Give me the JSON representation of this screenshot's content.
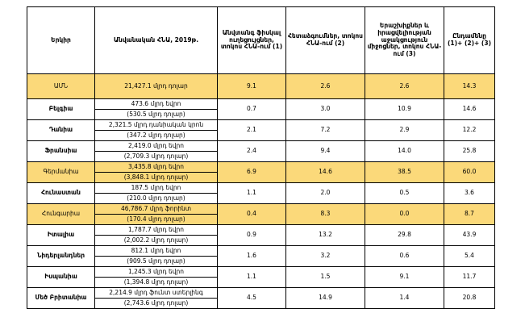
{
  "colors": {
    "highlight": "#fbd97a",
    "border": "#000000"
  },
  "headers": {
    "country": "Երկիր",
    "gdp": "Անվանական ՀՆԱ, 2019թ.",
    "col1": "Անվտանգ ֆիսկալ ուղեցույցներ, տոկոս ՀՆԱ-ում (1)",
    "col2": "Հետաձգումներ, տոկոս ՀՆԱ-ում (2)",
    "col3": "Երաշխիքներ և իրացվելիության աջակցություն միջոցներ, տոկոս ՀՆԱ-ում (3)",
    "total": "Ընդամենը (1)+ (2)+ (3)"
  },
  "rows": [
    {
      "country": "ԱՄՆ",
      "gdp": [
        "21,427.1 մլրդ դոլար"
      ],
      "c1": "9.1",
      "c2": "2.6",
      "c3": "2.6",
      "total": "14.3",
      "highlight": true
    },
    {
      "country": "Բելգիա",
      "gdp": [
        "473.6 մլրդ եվրո",
        "(530.5 մլրդ դոլար)"
      ],
      "c1": "0.7",
      "c2": "3.0",
      "c3": "10.9",
      "total": "14.6",
      "highlight": false
    },
    {
      "country": "Դանիա",
      "gdp": [
        "2,321.5 մլրդ դանիական կրոն",
        "(347.2 մլրդ դոլար)"
      ],
      "c1": "2.1",
      "c2": "7.2",
      "c3": "2.9",
      "total": "12.2",
      "highlight": false
    },
    {
      "country": "Ֆրանսիա",
      "gdp": [
        "2,419.0 մլրդ եվրո",
        "(2,709.3 մլրդ դոլար)"
      ],
      "c1": "2.4",
      "c2": "9.4",
      "c3": "14.0",
      "total": "25.8",
      "highlight": false
    },
    {
      "country": "Գերմանիա",
      "gdp": [
        "3,435.8 մլրդ եվրո",
        "(3,848.1 մլրդ դոլար)"
      ],
      "c1": "6.9",
      "c2": "14.6",
      "c3": "38.5",
      "total": "60.0",
      "highlight": true
    },
    {
      "country": "Հունաստան",
      "gdp": [
        "187.5 մլրդ եվրո",
        "(210.0 մլրդ դոլար)"
      ],
      "c1": "1.1",
      "c2": "2.0",
      "c3": "0.5",
      "total": "3.6",
      "highlight": false
    },
    {
      "country": "Հունգարիա",
      "gdp": [
        "46,786.7 մլրդ ֆորինտ",
        "(170.4 մլրդ դոլար)"
      ],
      "c1": "0.4",
      "c2": "8.3",
      "c3": "0.0",
      "total": "8.7",
      "highlight": true
    },
    {
      "country": "Իտալիա",
      "gdp": [
        "1,787.7 մլրդ եվրո",
        "(2,002.2 մլրդ դոլար)"
      ],
      "c1": "0.9",
      "c2": "13.2",
      "c3": "29.8",
      "total": "43.9",
      "highlight": false
    },
    {
      "country": "Նիդերլանդներ",
      "gdp": [
        "812.1 մլրդ եվրո",
        "(909.5 մլրդ դոլար)"
      ],
      "c1": "1.6",
      "c2": "3.2",
      "c3": "0.6",
      "total": "5.4",
      "highlight": false
    },
    {
      "country": "Իսպանիա",
      "gdp": [
        "1,245.3 մլրդ եվրո",
        "(1,394.8 մլրդ դոլար)"
      ],
      "c1": "1.1",
      "c2": "1.5",
      "c3": "9.1",
      "total": "11.7",
      "highlight": false
    },
    {
      "country": "Մեծ Բրիտանիա",
      "gdp": [
        "2,214.9 մլրդ ֆունտ ստերլինգ",
        "(2,743.6 մլրդ դոլար)"
      ],
      "c1": "4.5",
      "c2": "14.9",
      "c3": "1.4",
      "total": "20.8",
      "highlight": false
    }
  ]
}
